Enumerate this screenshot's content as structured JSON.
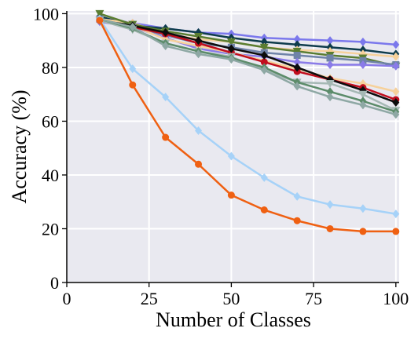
{
  "chart_data": {
    "type": "line",
    "title": "",
    "xlabel": "Number of Classes",
    "ylabel": "Accuracy (%)",
    "xlim": [
      0,
      101
    ],
    "ylim": [
      0,
      101
    ],
    "xticks": [
      0,
      25,
      50,
      75,
      100
    ],
    "yticks": [
      0,
      20,
      40,
      60,
      80,
      100
    ],
    "grid": true,
    "background": "#e9e9f0",
    "x": [
      10,
      20,
      30,
      40,
      50,
      60,
      70,
      80,
      90,
      100
    ],
    "series": [
      {
        "color": "#7b78ec",
        "marker": "diamond",
        "values": [
          98.5,
          96.5,
          94.5,
          93,
          92.5,
          91,
          90.5,
          90,
          89.5,
          88.5
        ]
      },
      {
        "color": "#0e3c4c",
        "marker": "diamond",
        "values": [
          99,
          95.5,
          94.5,
          93,
          91,
          89.5,
          88.5,
          87.5,
          86.5,
          85
        ]
      },
      {
        "color": "#f6d19b",
        "marker": "diamond",
        "values": [
          98,
          96.5,
          92.5,
          90.5,
          89.5,
          87.5,
          86.5,
          86,
          85,
          84
        ]
      },
      {
        "color": "#5a7d31",
        "marker": "triangle-down",
        "values": [
          100,
          96,
          93.5,
          91.5,
          89.5,
          87.5,
          86,
          84.5,
          83.5,
          80.5
        ]
      },
      {
        "color": "#6f83a8",
        "marker": "square",
        "values": [
          98,
          95,
          92,
          89,
          87.5,
          85.5,
          84.5,
          83.5,
          82.5,
          81
        ]
      },
      {
        "color": "#8a7be8",
        "marker": "diamond",
        "values": [
          97,
          95,
          91,
          87,
          85,
          84,
          82,
          81,
          81,
          80.5
        ]
      },
      {
        "color": "#f6d19b",
        "marker": "diamond",
        "values": [
          97.5,
          95.5,
          90.5,
          88,
          85.5,
          82.5,
          79.5,
          76,
          74,
          71
        ]
      },
      {
        "color": "#c10d1d",
        "marker": "circle",
        "values": [
          97.5,
          95,
          92.5,
          89,
          85.5,
          82,
          78.5,
          75.5,
          72.5,
          68
        ]
      },
      {
        "color": "#0d0d0d",
        "marker": "diamond",
        "values": [
          97.5,
          95.5,
          93,
          90,
          87,
          84.5,
          80,
          75.5,
          71.5,
          67
        ]
      },
      {
        "color": "#a5b8b4",
        "marker": "triangle-down",
        "values": [
          97.5,
          94,
          89,
          86,
          84,
          79,
          74.5,
          74,
          70,
          64
        ]
      },
      {
        "color": "#5c8c6a",
        "marker": "diamond",
        "values": [
          98,
          94.5,
          89,
          86,
          83.5,
          80,
          74.5,
          71,
          67.5,
          63.5
        ]
      },
      {
        "color": "#8ea8a4",
        "marker": "diamond",
        "values": [
          98,
          95,
          88,
          85,
          83,
          79,
          73,
          69,
          66,
          62.5
        ]
      },
      {
        "color": "#a6d2f8",
        "marker": "diamond",
        "values": [
          98,
          79.5,
          69,
          56.5,
          47,
          39,
          32,
          29,
          27.5,
          25.5
        ]
      },
      {
        "color": "#ef6012",
        "marker": "circle",
        "values": [
          97.5,
          73.5,
          54,
          44,
          32.5,
          27,
          23,
          20,
          19,
          19
        ]
      }
    ]
  }
}
